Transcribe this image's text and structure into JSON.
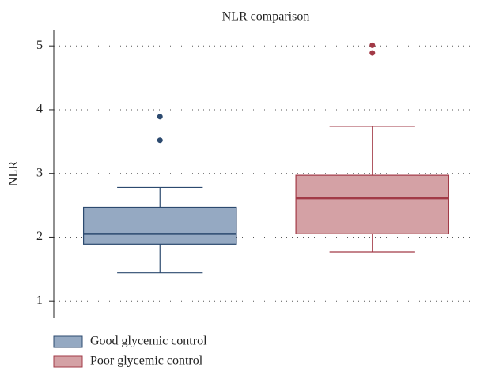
{
  "chart_data": {
    "type": "box",
    "title": "NLR comparison",
    "y_label": "NLR",
    "ylim": [
      0.73,
      5.25
    ],
    "yticks": [
      1,
      2,
      3,
      4,
      5
    ],
    "grid": true,
    "legend_position": "bottom-left",
    "series": [
      {
        "name": "Good glycemic control",
        "color": "#95a9c2",
        "edge_color": "#2c4a6f",
        "whisker_low": 1.44,
        "q1": 1.89,
        "median": 2.05,
        "q3": 2.47,
        "whisker_high": 2.78,
        "outliers": [
          3.89,
          3.52
        ]
      },
      {
        "name": "Poor glycemic control",
        "color": "#d4a1a5",
        "edge_color": "#a23a47",
        "whisker_low": 1.77,
        "q1": 2.05,
        "median": 2.61,
        "q3": 2.97,
        "whisker_high": 3.74,
        "outliers": [
          5.01,
          4.89
        ]
      }
    ]
  }
}
